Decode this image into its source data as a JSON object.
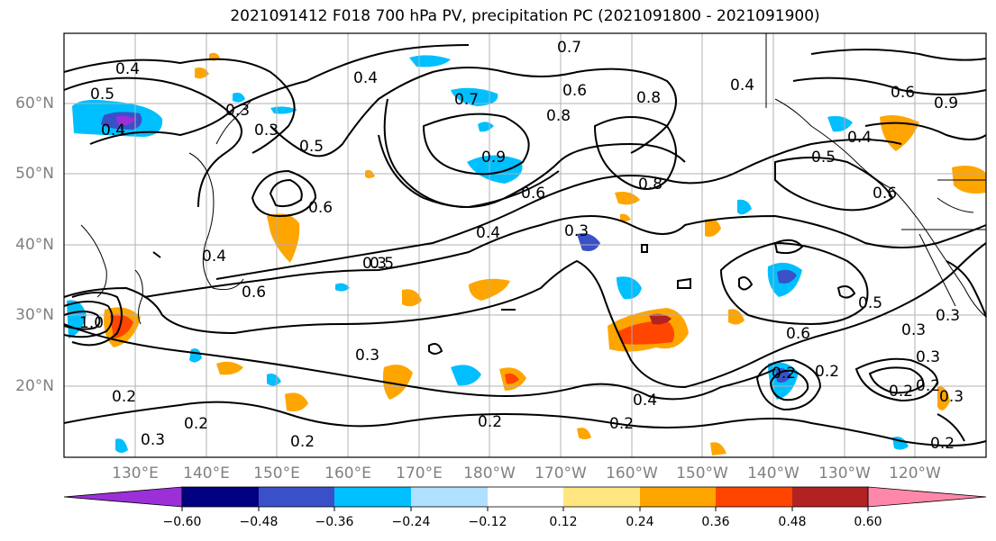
{
  "title": "2021091412 F018 700 hPa PV, precipitation PC (2021091800 - 2021091900)",
  "lat_labels": [
    "60°N",
    "50°N",
    "40°N",
    "30°N",
    "20°N"
  ],
  "lon_labels": [
    "130°E",
    "140°E",
    "150°E",
    "160°E",
    "170°E",
    "180°W",
    "170°W",
    "160°W",
    "150°W",
    "140°W",
    "130°W",
    "120°W"
  ],
  "contour_labels": [
    "0.4",
    "0.5",
    "0.4",
    "0.3",
    "0.3",
    "0.4",
    "0.5",
    "0.7",
    "0.6",
    "0.8",
    "0.8",
    "0.7",
    "0.6",
    "0.4",
    "0.6",
    "0.9",
    "0.8",
    "0.6",
    "0.5",
    "0.4",
    "0.4",
    "0.6",
    "0.3",
    "0.6",
    "0.4",
    "0.3",
    "0.5",
    "0.6",
    "0.5",
    "0.3",
    "0.9",
    "1.0",
    "0.2",
    "0.3",
    "0.2",
    "0.2",
    "0.3",
    "0.2",
    "0.4",
    "0.2",
    "0.2",
    "0.3",
    "0.2",
    "0.2",
    "0.3",
    "0.3",
    "0.2",
    "0.2"
  ],
  "colorbar": {
    "ticks": [
      "−0.60",
      "−0.48",
      "−0.36",
      "−0.24",
      "−0.12",
      "0.12",
      "0.24",
      "0.36",
      "0.48",
      "0.60"
    ],
    "colors": [
      "#9b30d9",
      "#000080",
      "#3a50c8",
      "#00bfff",
      "#b0e0ff",
      "#ffffff",
      "#ffe680",
      "#ffa500",
      "#ff4500",
      "#b22222",
      "#ff88aa"
    ]
  },
  "colors": {
    "frame": "#000000",
    "grid": "#b0b0b0",
    "axis_text": "#808080"
  }
}
